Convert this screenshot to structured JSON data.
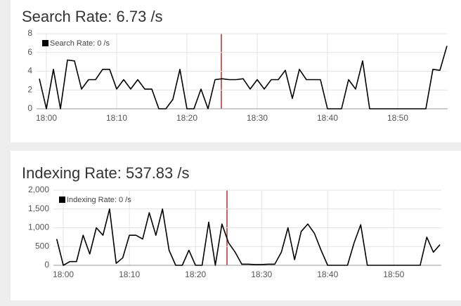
{
  "chart_data": [
    {
      "type": "line",
      "title": "Search Rate: 6.73 /s",
      "x": [
        -1,
        0,
        1,
        2,
        3,
        4,
        5,
        6,
        7,
        8,
        9,
        10,
        11,
        12,
        13,
        14,
        15,
        16,
        17,
        18,
        19,
        20,
        21,
        22,
        23,
        24,
        25,
        26,
        27,
        28,
        29,
        30,
        31,
        32,
        33,
        34,
        35,
        36,
        37,
        38,
        39,
        40,
        41,
        42,
        43,
        44,
        45,
        46,
        47,
        48,
        49,
        50,
        51,
        52,
        53,
        54,
        55,
        56,
        57
      ],
      "series": [
        {
          "name": "Search Rate: 0 /s",
          "color": "#000000",
          "values": [
            3.2,
            0,
            4.2,
            0,
            5.2,
            5.1,
            2.1,
            3.1,
            3.1,
            4.2,
            4.2,
            2.1,
            3.1,
            2.1,
            3.1,
            2.1,
            2.1,
            0,
            0,
            1,
            4.2,
            0,
            0,
            2.1,
            0,
            3.1,
            3.2,
            3.1,
            3.1,
            3.2,
            2.1,
            3.1,
            2.1,
            3.1,
            3.1,
            4.1,
            1.1,
            4.2,
            3.1,
            3.1,
            3.1,
            0,
            0,
            0,
            3.1,
            2.1,
            5.1,
            0,
            0,
            0,
            0,
            0,
            0,
            0,
            0,
            0,
            4.2,
            4.1,
            6.7
          ]
        }
      ],
      "xlim": [
        -1.4,
        57.1
      ],
      "xticks": [
        {
          "value": 0,
          "label": "18:00"
        },
        {
          "value": 10,
          "label": "18:10"
        },
        {
          "value": 20,
          "label": "18:20"
        },
        {
          "value": 30,
          "label": "18:30"
        },
        {
          "value": 40,
          "label": "18:40"
        },
        {
          "value": 50,
          "label": "18:50"
        }
      ],
      "ylim": [
        0,
        8
      ],
      "yticks": [
        0,
        2,
        4,
        6,
        8
      ],
      "grid": true
    },
    {
      "type": "line",
      "title": "Indexing Rate: 537.83 /s",
      "x": [
        -1,
        0,
        1,
        2,
        3,
        4,
        5,
        6,
        7,
        8,
        9,
        10,
        11,
        12,
        13,
        14,
        15,
        16,
        17,
        18,
        19,
        20,
        21,
        22,
        23,
        24,
        25,
        26,
        27,
        28,
        29,
        30,
        31,
        32,
        33,
        34,
        35,
        36,
        37,
        38,
        39,
        40,
        41,
        42,
        43,
        44,
        45,
        46,
        47,
        48,
        49,
        50,
        51,
        52,
        53,
        54,
        55,
        56,
        57
      ],
      "series": [
        {
          "name": "Indexing Rate: 0 /s",
          "color": "#000000",
          "values": [
            700,
            0,
            100,
            100,
            800,
            300,
            1000,
            800,
            1500,
            50,
            200,
            800,
            800,
            700,
            1400,
            800,
            1500,
            400,
            0,
            0,
            400,
            0,
            0,
            1150,
            0,
            1100,
            600,
            350,
            30,
            30,
            20,
            20,
            30,
            30,
            350,
            1000,
            150,
            900,
            1100,
            850,
            400,
            0,
            0,
            0,
            0,
            600,
            1080,
            0,
            0,
            0,
            0,
            0,
            0,
            0,
            0,
            0,
            750,
            350,
            550
          ]
        }
      ],
      "xlim": [
        -1.5,
        57.2
      ],
      "xticks": [
        {
          "value": 0,
          "label": "18:00"
        },
        {
          "value": 10,
          "label": "18:10"
        },
        {
          "value": 20,
          "label": "18:20"
        },
        {
          "value": 30,
          "label": "18:30"
        },
        {
          "value": 40,
          "label": "18:40"
        },
        {
          "value": 50,
          "label": "18:50"
        }
      ],
      "ylim": [
        0,
        2000
      ],
      "yticks": [
        0,
        500,
        {
          "value": 1000,
          "label": "1,000"
        },
        {
          "value": 1500,
          "label": "1,500"
        },
        {
          "value": 2000,
          "label": "2,000"
        }
      ],
      "grid": true
    }
  ]
}
